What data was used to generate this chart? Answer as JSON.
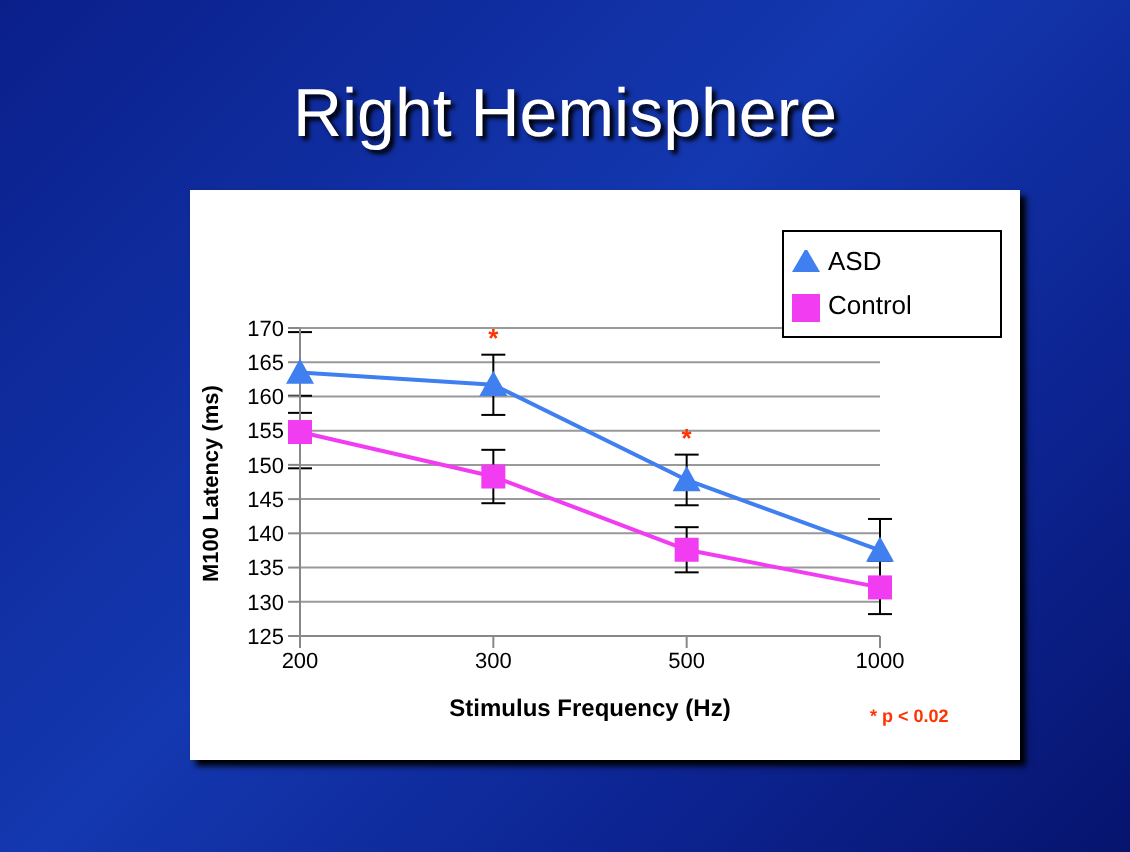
{
  "chart_data": {
    "type": "line",
    "title": "Right Hemisphere",
    "xlabel": "Stimulus Frequency (Hz)",
    "ylabel": "M100 Latency (ms)",
    "categories": [
      "200",
      "300",
      "500",
      "1000"
    ],
    "series": [
      {
        "name": "ASD",
        "color": "#3f7ff0",
        "marker": "triangle",
        "values": [
          163.5,
          161.7,
          147.8,
          137.5
        ],
        "errors": [
          5.9,
          4.4,
          3.7,
          4.6
        ]
      },
      {
        "name": "Control",
        "color": "#f23cf2",
        "marker": "square",
        "values": [
          154.8,
          148.3,
          137.6,
          132.1
        ],
        "errors": [
          5.3,
          3.9,
          3.3,
          3.9
        ]
      }
    ],
    "ylim": [
      125,
      170
    ],
    "yticks": [
      125,
      130,
      135,
      140,
      145,
      150,
      155,
      160,
      165,
      170
    ],
    "grid": "y",
    "legend": "top right",
    "annotations": [
      {
        "text": "*",
        "x": "300",
        "y": 166.1
      },
      {
        "text": "*",
        "x": "500",
        "y": 151.5
      },
      "* p < 0.02"
    ]
  }
}
